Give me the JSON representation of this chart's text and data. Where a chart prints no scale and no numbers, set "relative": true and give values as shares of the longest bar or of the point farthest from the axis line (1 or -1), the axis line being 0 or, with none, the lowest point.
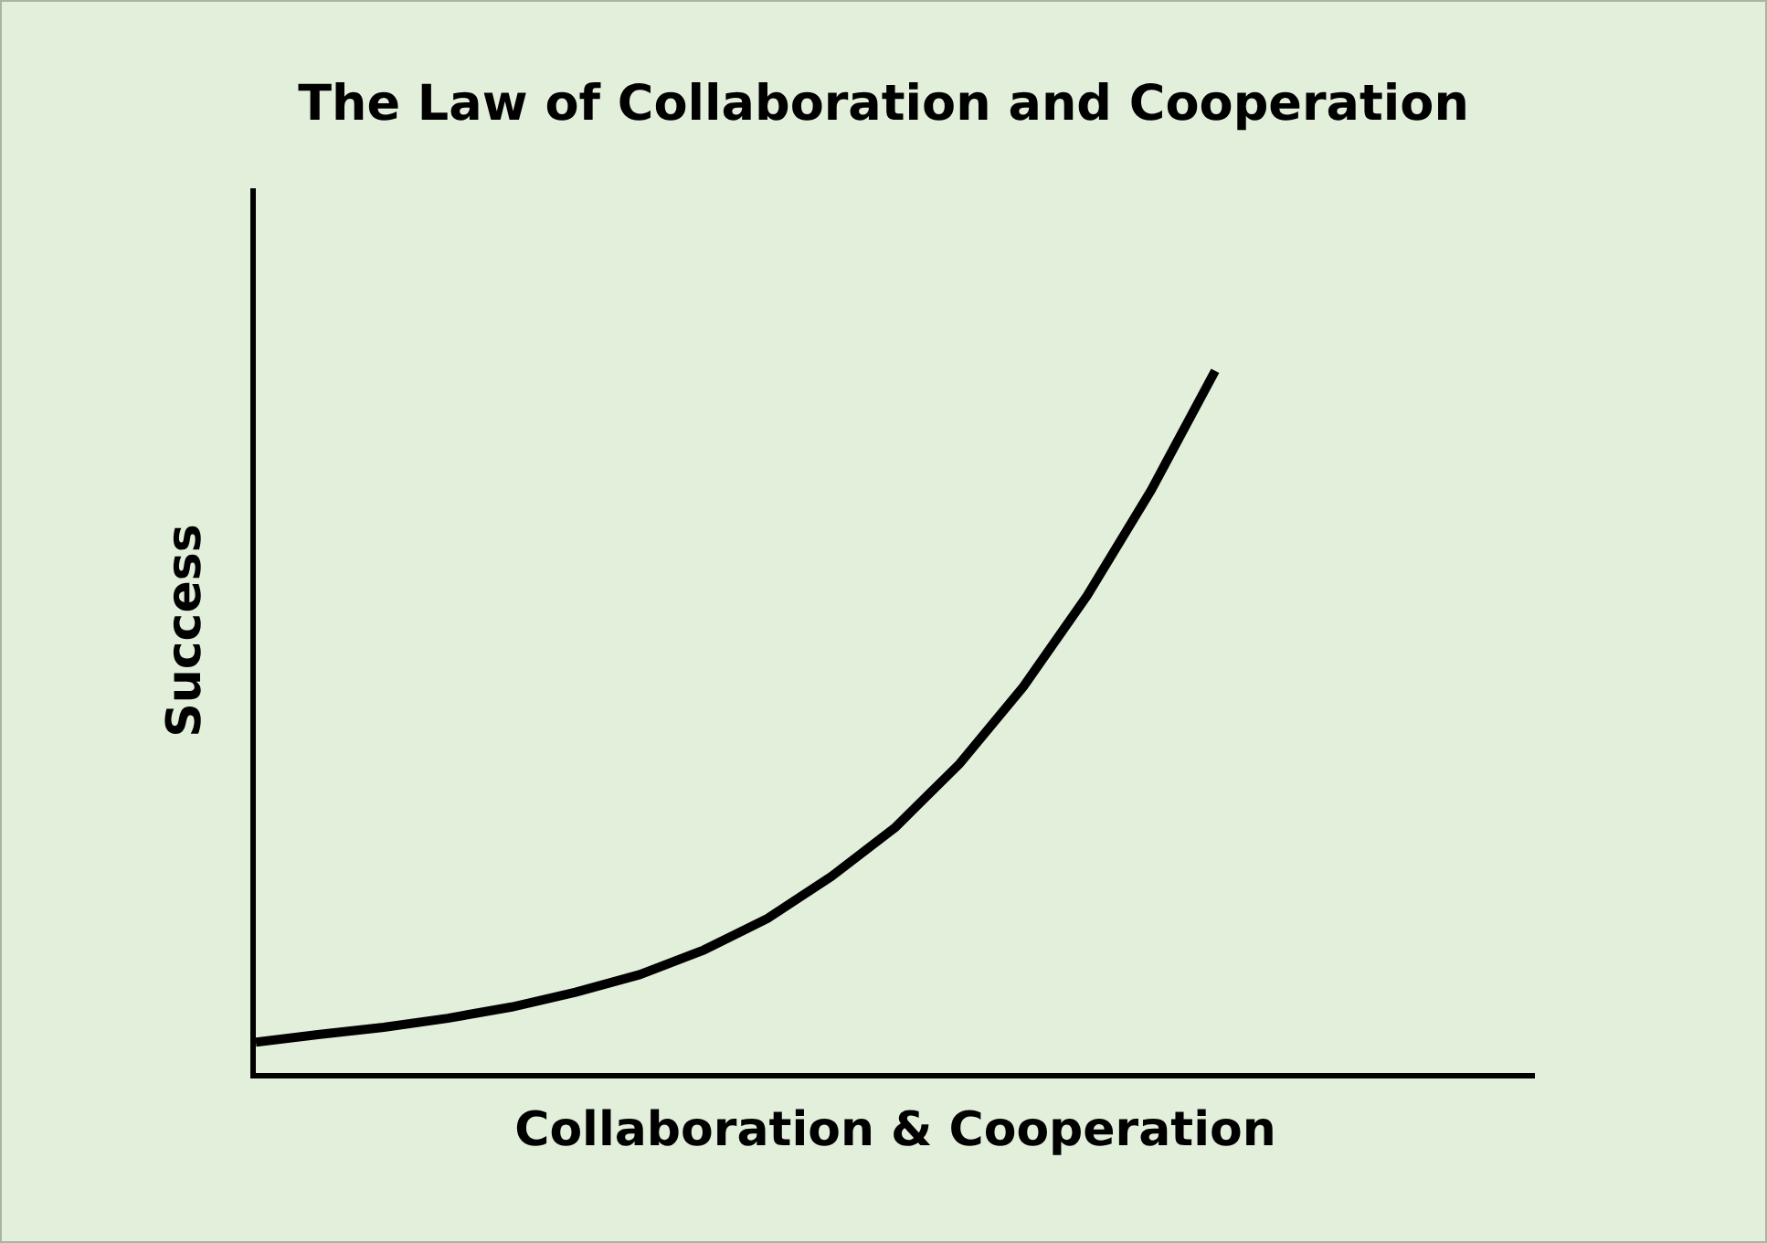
{
  "chart_data": {
    "type": "line",
    "title": "The Law of Collaboration and Cooperation",
    "xlabel": "Collaboration & Cooperation",
    "ylabel": "Success",
    "relative": true,
    "categories": [
      null,
      null,
      null,
      null,
      null,
      null,
      null,
      null,
      null,
      null,
      null,
      null,
      null,
      null,
      null,
      null,
      null,
      null,
      null,
      null,
      null
    ],
    "series": [
      {
        "color": "#000000",
        "values": [
          0.044,
          0.055,
          0.065,
          0.078,
          0.094,
          0.115,
          0.14,
          0.175,
          0.22,
          0.28,
          0.35,
          0.44,
          0.55,
          0.68,
          0.83,
          1,
          null,
          null,
          null,
          null,
          null
        ]
      }
    ],
    "marker": "none",
    "line_style": "solid"
  }
}
